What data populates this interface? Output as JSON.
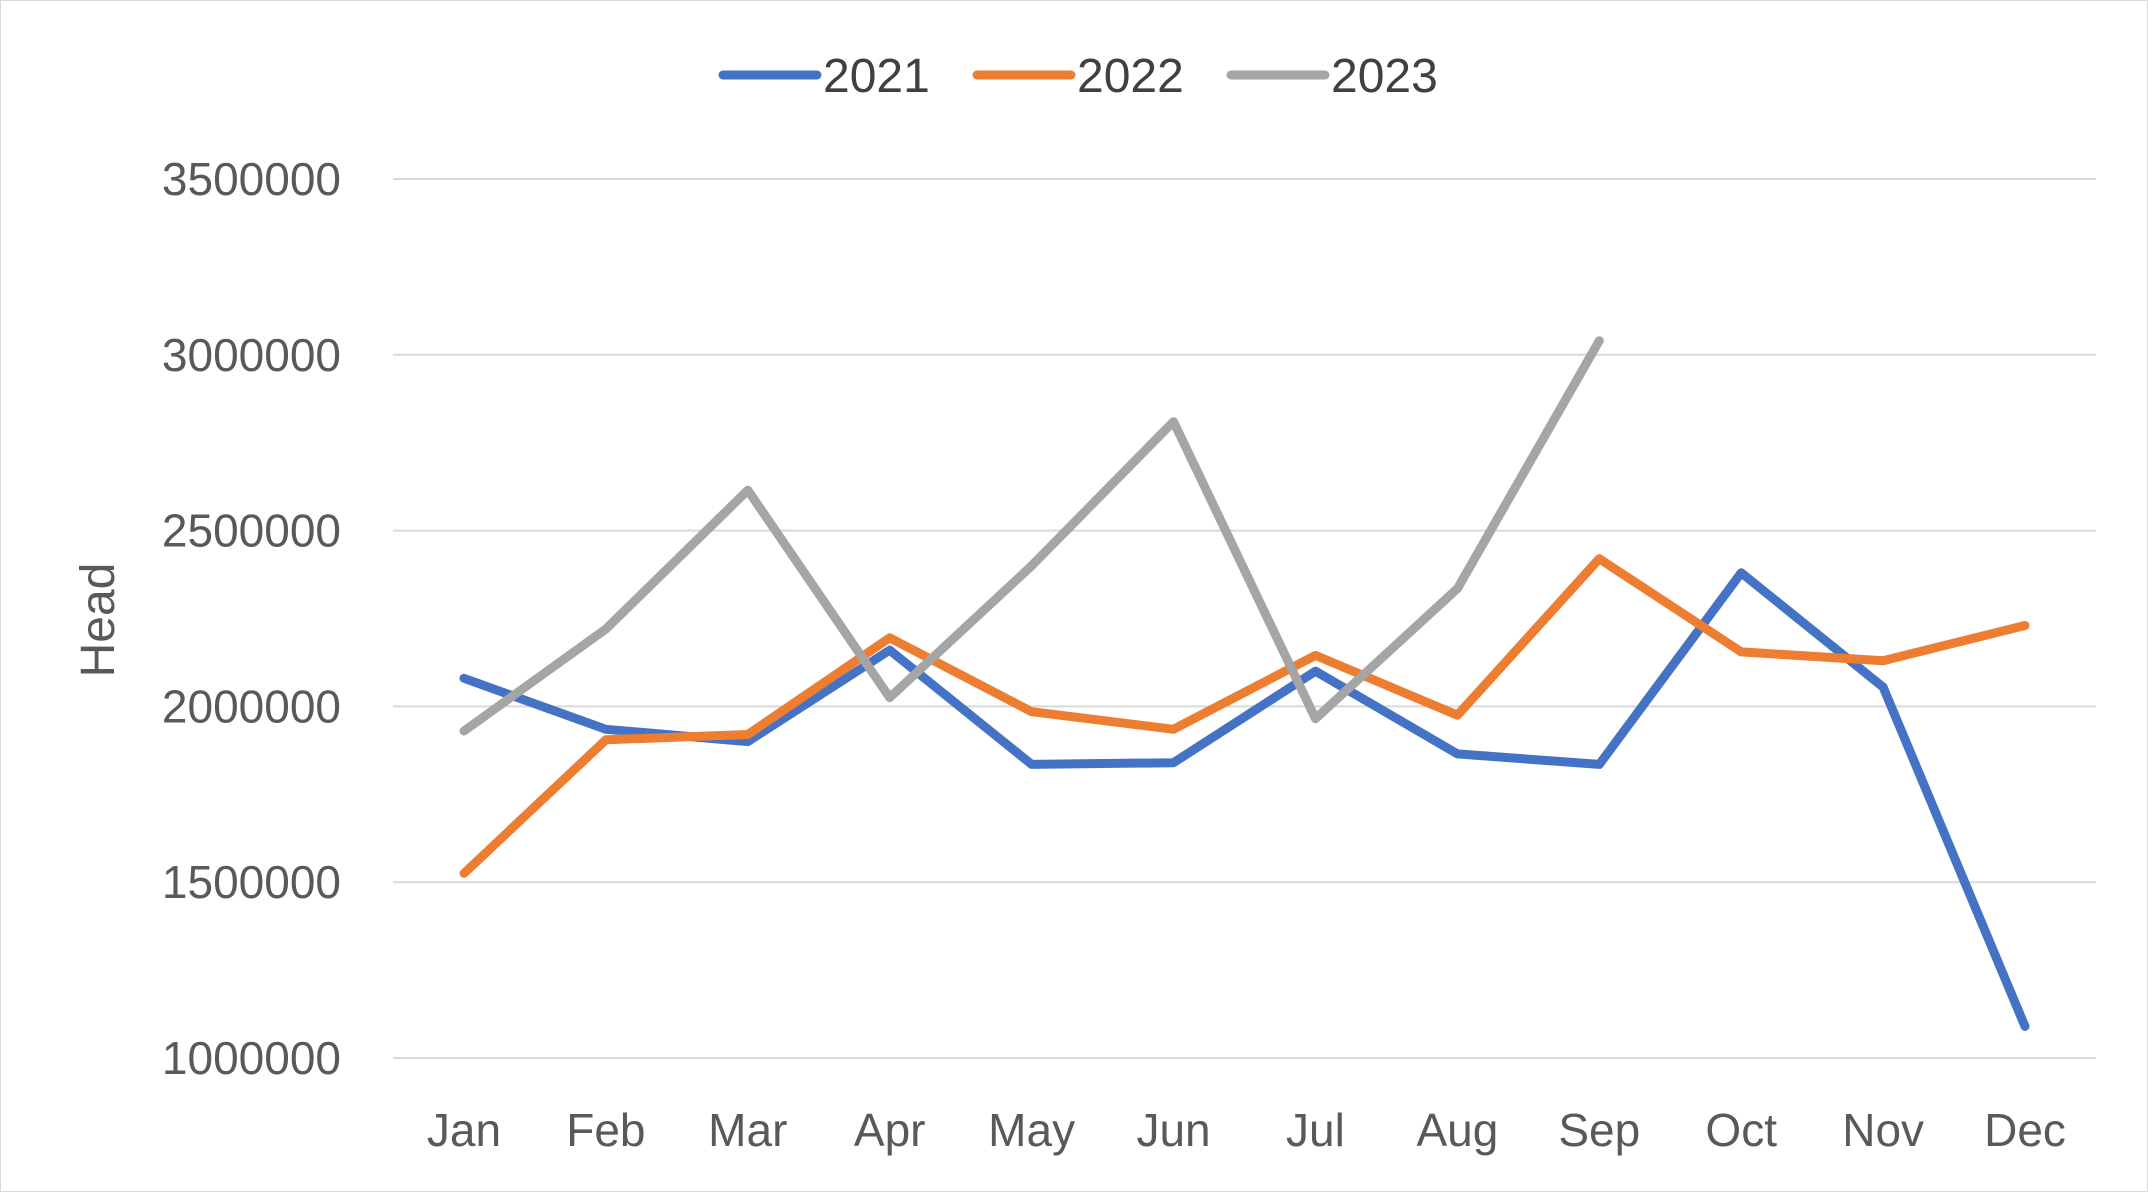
{
  "chart_data": {
    "type": "line",
    "title": "",
    "xlabel": "",
    "ylabel": "Head",
    "categories": [
      "Jan",
      "Feb",
      "Mar",
      "Apr",
      "May",
      "Jun",
      "Jul",
      "Aug",
      "Sep",
      "Oct",
      "Nov",
      "Dec"
    ],
    "ylim": [
      1000000,
      3500000
    ],
    "yticks": [
      "3500000",
      "3000000",
      "2500000",
      "2000000",
      "1500000",
      "1000000"
    ],
    "ytick_values": [
      3500000,
      3000000,
      2500000,
      2000000,
      1500000,
      1000000
    ],
    "grid": true,
    "legend_position": "top-center",
    "series": [
      {
        "name": "2021",
        "color": "#4472C4",
        "values": [
          2080000,
          1935000,
          1900000,
          2160000,
          1835000,
          1840000,
          2100000,
          1865000,
          1835000,
          2380000,
          2055000,
          1090000
        ]
      },
      {
        "name": "2022",
        "color": "#ED7D31",
        "values": [
          1525000,
          1905000,
          1920000,
          2195000,
          1985000,
          1935000,
          2145000,
          1975000,
          2420000,
          2155000,
          2130000,
          2230000
        ]
      },
      {
        "name": "2023",
        "color": "#A5A5A5",
        "values": [
          1930000,
          2220000,
          2615000,
          2025000,
          2400000,
          2810000,
          1965000,
          2335000,
          3040000,
          null,
          null,
          null
        ]
      }
    ]
  }
}
